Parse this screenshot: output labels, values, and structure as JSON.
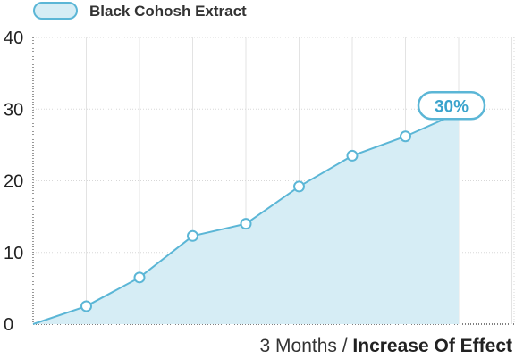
{
  "chart_data": {
    "type": "area",
    "series": [
      {
        "name": "Black Cohosh Extract",
        "values": [
          0,
          2.5,
          6.5,
          12.3,
          14,
          19.2,
          23.5,
          26.2,
          29.5
        ]
      }
    ],
    "x": [
      0,
      1,
      2,
      3,
      4,
      5,
      6,
      7,
      8
    ],
    "ylim": [
      0,
      40
    ],
    "yticks": [
      "0",
      "10",
      "20",
      "30",
      "40"
    ],
    "grid": true,
    "legend_position": "top-left",
    "xlabel_prefix": "3 Months / ",
    "xlabel_emphasis": "Increase Of Effect",
    "callout": "30%",
    "colors": {
      "line": "#5bb6d6",
      "fill": "#d6edf5",
      "text": "#3aa3cc"
    }
  }
}
